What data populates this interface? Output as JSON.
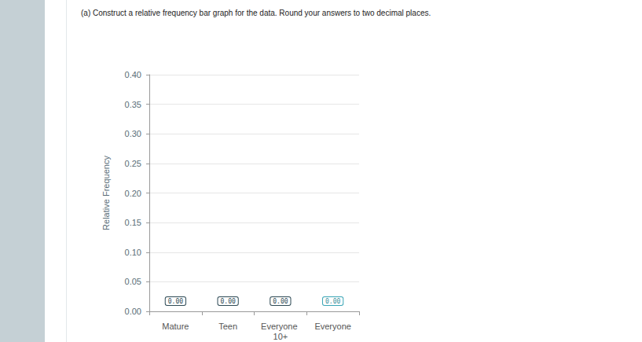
{
  "chart_data": {
    "type": "bar",
    "title": "(a) Construct a relative frequency bar graph for the data. Round your answers to two decimal places.",
    "y_label": "Relative Frequency",
    "categories": [
      "Mature",
      "Teen",
      "Everyone 10+",
      "Everyone"
    ],
    "values": [
      0,
      0,
      0,
      0
    ],
    "value_labels": [
      "0.00",
      "0.00",
      "0.00",
      "0.00"
    ],
    "data_labels": true,
    "ylim": [
      0,
      0.4
    ],
    "yticks": [
      {
        "value": 0,
        "label": "0.00"
      },
      {
        "value": 0.05,
        "label": "0.05"
      },
      {
        "value": 0.1,
        "label": "0.10"
      },
      {
        "value": 0.15,
        "label": "0.15"
      },
      {
        "value": 0.2,
        "label": "0.20"
      },
      {
        "value": 0.25,
        "label": "0.25"
      },
      {
        "value": 0.3,
        "label": "0.30"
      },
      {
        "value": 0.35,
        "label": "0.35"
      },
      {
        "value": 0.4,
        "label": "0.40"
      }
    ],
    "grid": true
  }
}
